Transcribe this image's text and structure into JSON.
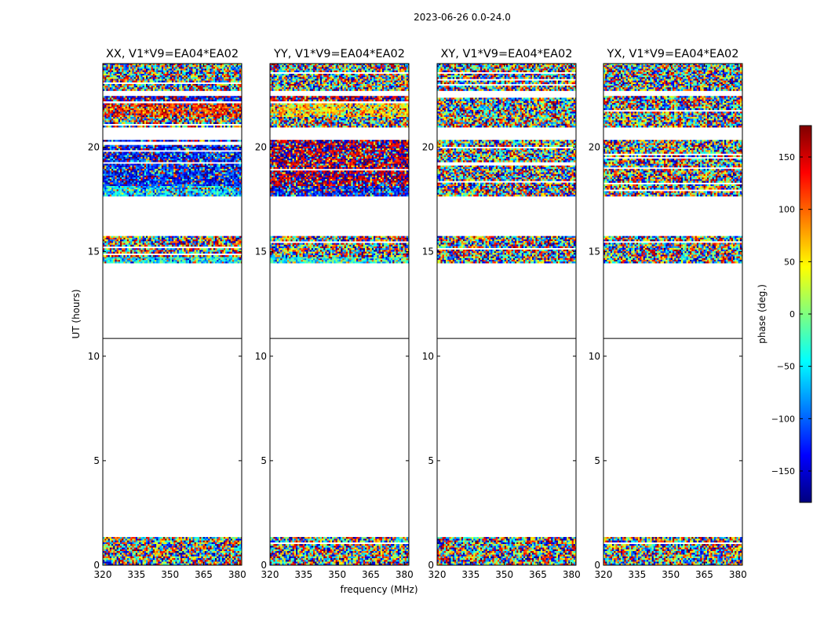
{
  "figure": {
    "suptitle": "2023-06-26 0.0-24.0",
    "colorbar_label": "phase (deg.)",
    "colorbar_ticks": [
      "150",
      "100",
      "50",
      "0",
      "−50",
      "−100",
      "−150"
    ],
    "colormap": [
      "#00007f",
      "#0000ff",
      "#007fff",
      "#00ffff",
      "#7fff7f",
      "#ffff00",
      "#ff7f00",
      "#ff0000",
      "#7f0000"
    ]
  },
  "chart_data": {
    "type": "heatmap",
    "xlabel": "frequency (MHz)",
    "ylabel": "UT (hours)",
    "xlim": [
      320,
      382
    ],
    "ylim": [
      0,
      24
    ],
    "xticks": [
      320,
      335,
      350,
      365,
      380
    ],
    "xtick_labels": [
      "320",
      "335",
      "350",
      "365",
      "380"
    ],
    "yticks": [
      0,
      5,
      10,
      15,
      20
    ],
    "ytick_labels": [
      "0",
      "5",
      "10",
      "15",
      "20"
    ],
    "clim": [
      -180,
      180
    ],
    "colorbar_tick_values": [
      150,
      100,
      50,
      0,
      -50,
      -100,
      -150
    ],
    "divider_ut": 10.85,
    "panels": [
      {
        "title": "XX, V1*V9=EA04*EA02",
        "bands": [
          {
            "ut": [
              0.0,
              1.35
            ],
            "phase": "noise"
          },
          {
            "ut": [
              14.45,
              14.75
            ],
            "phase": -40
          },
          {
            "ut": [
              14.75,
              15.75
            ],
            "phase": "noise"
          },
          {
            "ut": [
              17.65,
              18.15
            ],
            "phase": -60
          },
          {
            "ut": [
              18.15,
              20.35
            ],
            "phase": -130
          },
          {
            "ut": [
              20.95,
              21.45
            ],
            "phase": "noise"
          },
          {
            "ut": [
              21.45,
              22.1
            ],
            "phase": 130
          },
          {
            "ut": [
              22.2,
              22.45
            ],
            "phase": -160
          },
          {
            "ut": [
              22.7,
              24.0
            ],
            "phase": "noise"
          }
        ]
      },
      {
        "title": "YY, V1*V9=EA04*EA02",
        "bands": [
          {
            "ut": [
              0.0,
              1.35
            ],
            "phase": "noise"
          },
          {
            "ut": [
              14.45,
              14.75
            ],
            "phase": -40
          },
          {
            "ut": [
              14.75,
              15.75
            ],
            "phase": "noise"
          },
          {
            "ut": [
              17.65,
              18.15
            ],
            "phase": -130
          },
          {
            "ut": [
              18.15,
              20.35
            ],
            "phase": 170
          },
          {
            "ut": [
              20.95,
              21.45
            ],
            "phase": "noise"
          },
          {
            "ut": [
              21.45,
              22.1
            ],
            "phase": 60
          },
          {
            "ut": [
              22.2,
              22.45
            ],
            "phase": 160
          },
          {
            "ut": [
              22.7,
              24.0
            ],
            "phase": "noise"
          }
        ]
      },
      {
        "title": "XY, V1*V9=EA04*EA02",
        "bands": [
          {
            "ut": [
              0.0,
              1.35
            ],
            "phase": "noise"
          },
          {
            "ut": [
              14.45,
              15.75
            ],
            "phase": "noise"
          },
          {
            "ut": [
              17.65,
              20.35
            ],
            "phase": "noise"
          },
          {
            "ut": [
              20.95,
              22.45
            ],
            "phase": "noise"
          },
          {
            "ut": [
              22.7,
              24.0
            ],
            "phase": "noise"
          }
        ]
      },
      {
        "title": "YX, V1*V9=EA04*EA02",
        "bands": [
          {
            "ut": [
              0.0,
              1.35
            ],
            "phase": "noise"
          },
          {
            "ut": [
              14.45,
              15.75
            ],
            "phase": "noise"
          },
          {
            "ut": [
              17.65,
              20.35
            ],
            "phase": "noise"
          },
          {
            "ut": [
              20.95,
              22.45
            ],
            "phase": "noise"
          },
          {
            "ut": [
              22.7,
              24.0
            ],
            "phase": "noise"
          }
        ]
      }
    ]
  }
}
